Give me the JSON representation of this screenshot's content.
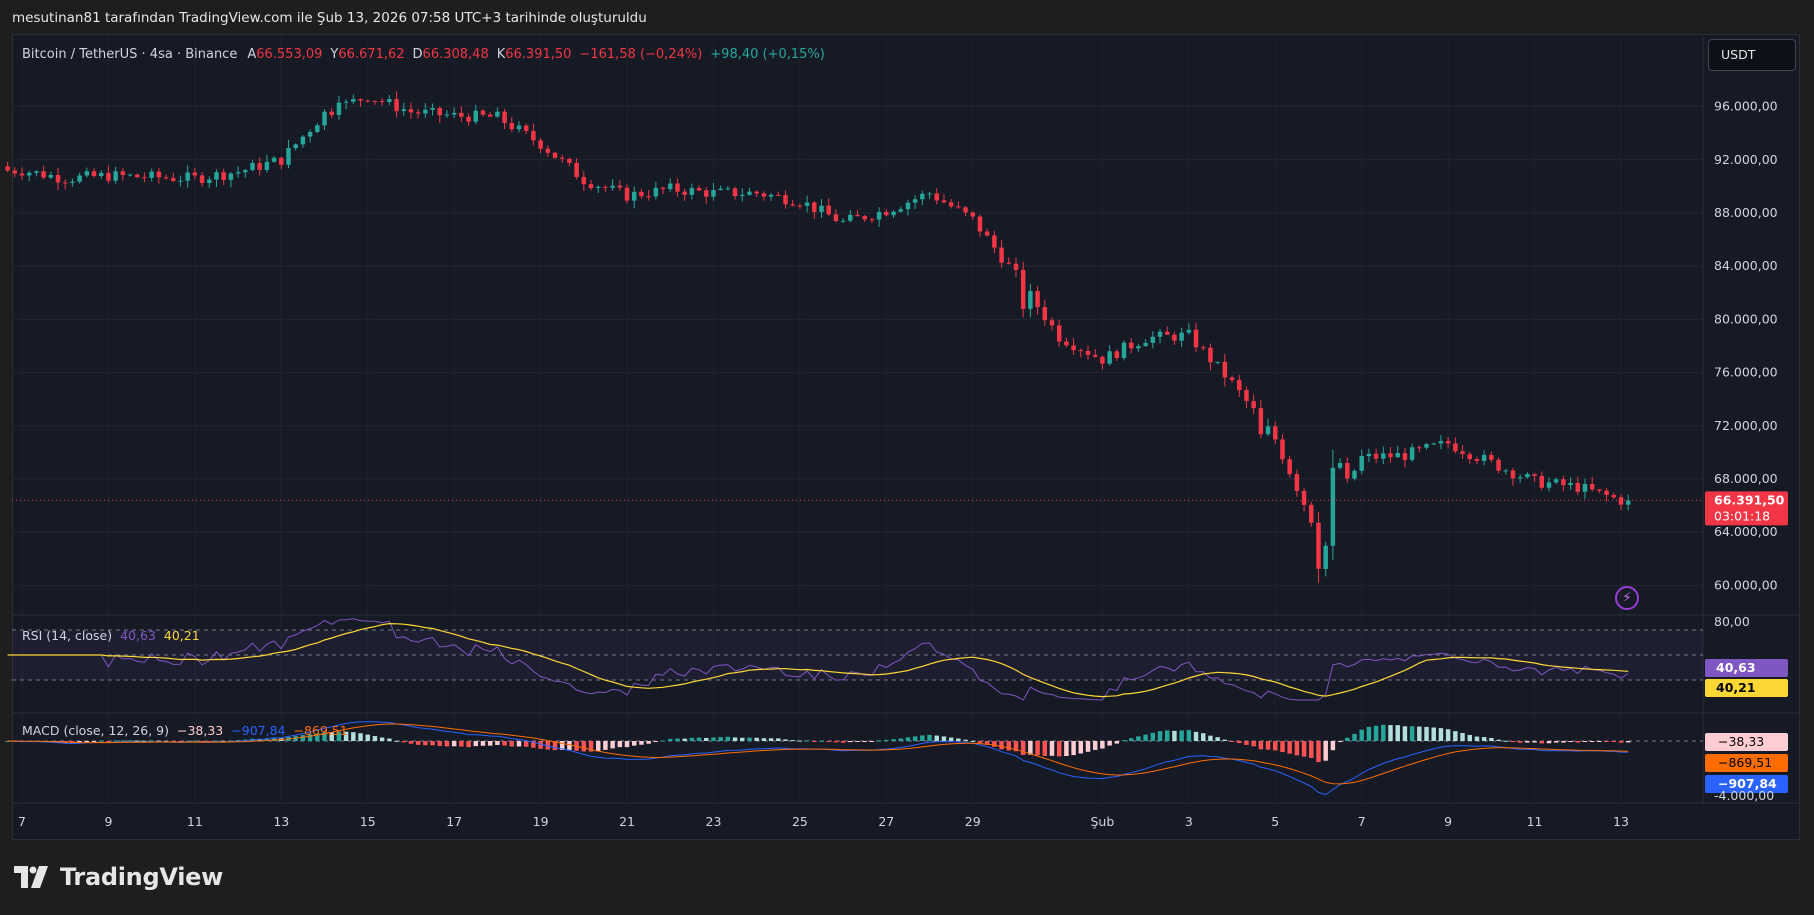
{
  "caption": "mesutinan81 tarafından TradingView.com ile Şub 13, 2026 07:58 UTC+3 tarihinde oluşturuldu",
  "brand": "TradingView",
  "currency_button": "USDT",
  "header": {
    "symbol": "Bitcoin / TetherUS · 4sa · Binance",
    "open_label": "A",
    "open": "66.553,09",
    "high_label": "Y",
    "high": "66.671,62",
    "low_label": "D",
    "low": "66.308,48",
    "close_label": "K",
    "close": "66.391,50",
    "change": "−161,58 (−0,24%)",
    "volume_change": "+98,40 (+0,15%)"
  },
  "price_tag": {
    "price": "66.391,50",
    "countdown": "03:01:18"
  },
  "rsi": {
    "label": "RSI (14, close)",
    "value": "40,63",
    "ma": "40,21",
    "scale_top": "80,00",
    "tag_rsi": "40,63",
    "tag_ma": "40,21"
  },
  "macd": {
    "label": "MACD (close, 12, 26, 9)",
    "hist": "−38,33",
    "macd": "−907,84",
    "signal": "−869,51",
    "scale_bottom": "-4.000,00",
    "tag_hist": "−38,33",
    "tag_signal": "−869,51",
    "tag_macd": "−907,84"
  },
  "colors": {
    "up": "#26a69a",
    "down": "#f23645",
    "rsi": "#7e57c2",
    "rsi_ma": "#fdd835",
    "macd": "#2962ff",
    "signal": "#ff6d00"
  },
  "chart_data": {
    "type": "candlestick",
    "interval": "4sa",
    "y_axis_ticks": [
      "96.000,00",
      "92.000,00",
      "88.000,00",
      "84.000,00",
      "80.000,00",
      "76.000,00",
      "72.000,00",
      "68.000,00",
      "64.000,00",
      "60.000,00"
    ],
    "ylim": [
      58000,
      99500
    ],
    "x_axis_ticks": [
      "7",
      "9",
      "11",
      "13",
      "15",
      "17",
      "19",
      "21",
      "23",
      "25",
      "27",
      "29",
      "Şub",
      "3",
      "5",
      "7",
      "9",
      "11",
      "13"
    ],
    "x_dates": [
      "2026-01-07",
      "2026-01-09",
      "2026-01-11",
      "2026-01-13",
      "2026-01-15",
      "2026-01-17",
      "2026-01-19",
      "2026-01-21",
      "2026-01-23",
      "2026-01-25",
      "2026-01-27",
      "2026-01-29",
      "2026-02-01",
      "2026-02-03",
      "2026-02-05",
      "2026-02-07",
      "2026-02-09",
      "2026-02-11",
      "2026-02-13"
    ],
    "daily_close_approx": [
      {
        "date": "2026-01-07",
        "close": 91200
      },
      {
        "date": "2026-01-08",
        "close": 90600
      },
      {
        "date": "2026-01-09",
        "close": 90800
      },
      {
        "date": "2026-01-10",
        "close": 90700
      },
      {
        "date": "2026-01-11",
        "close": 90600
      },
      {
        "date": "2026-01-12",
        "close": 91100
      },
      {
        "date": "2026-01-13",
        "close": 92000
      },
      {
        "date": "2026-01-14",
        "close": 95500
      },
      {
        "date": "2026-01-15",
        "close": 96800
      },
      {
        "date": "2026-01-16",
        "close": 95600
      },
      {
        "date": "2026-01-17",
        "close": 95300
      },
      {
        "date": "2026-01-18",
        "close": 95200
      },
      {
        "date": "2026-01-19",
        "close": 93200
      },
      {
        "date": "2026-01-20",
        "close": 90500
      },
      {
        "date": "2026-01-21",
        "close": 89300
      },
      {
        "date": "2026-01-22",
        "close": 89800
      },
      {
        "date": "2026-01-23",
        "close": 89500
      },
      {
        "date": "2026-01-24",
        "close": 89500
      },
      {
        "date": "2026-01-25",
        "close": 88900
      },
      {
        "date": "2026-01-26",
        "close": 87300
      },
      {
        "date": "2026-01-27",
        "close": 88200
      },
      {
        "date": "2026-01-28",
        "close": 89500
      },
      {
        "date": "2026-01-29",
        "close": 87500
      },
      {
        "date": "2026-01-30",
        "close": 83300
      },
      {
        "date": "2026-01-31",
        "close": 78700
      },
      {
        "date": "2026-02-01",
        "close": 77000
      },
      {
        "date": "2026-02-02",
        "close": 78600
      },
      {
        "date": "2026-02-03",
        "close": 78800
      },
      {
        "date": "2026-02-04",
        "close": 75200
      },
      {
        "date": "2026-02-05",
        "close": 71000
      },
      {
        "date": "2026-02-06",
        "close": 63800
      },
      {
        "date": "2026-02-07",
        "close": 69600
      },
      {
        "date": "2026-02-08",
        "close": 69800
      },
      {
        "date": "2026-02-09",
        "close": 70700
      },
      {
        "date": "2026-02-10",
        "close": 69200
      },
      {
        "date": "2026-02-11",
        "close": 67800
      },
      {
        "date": "2026-02-12",
        "close": 67400
      },
      {
        "date": "2026-02-13",
        "close": 66391.5
      }
    ],
    "last_price": 66391.5,
    "indicators": [
      {
        "name": "RSI (14, close)",
        "ylim": [
          0,
          100
        ],
        "levels": [
          70,
          50,
          30
        ],
        "last": [
          40.63,
          40.21
        ]
      },
      {
        "name": "MACD (close, 12, 26, 9)",
        "last": {
          "histogram": -38.33,
          "macd": -907.84,
          "signal": -869.51
        }
      }
    ],
    "grid": true
  }
}
